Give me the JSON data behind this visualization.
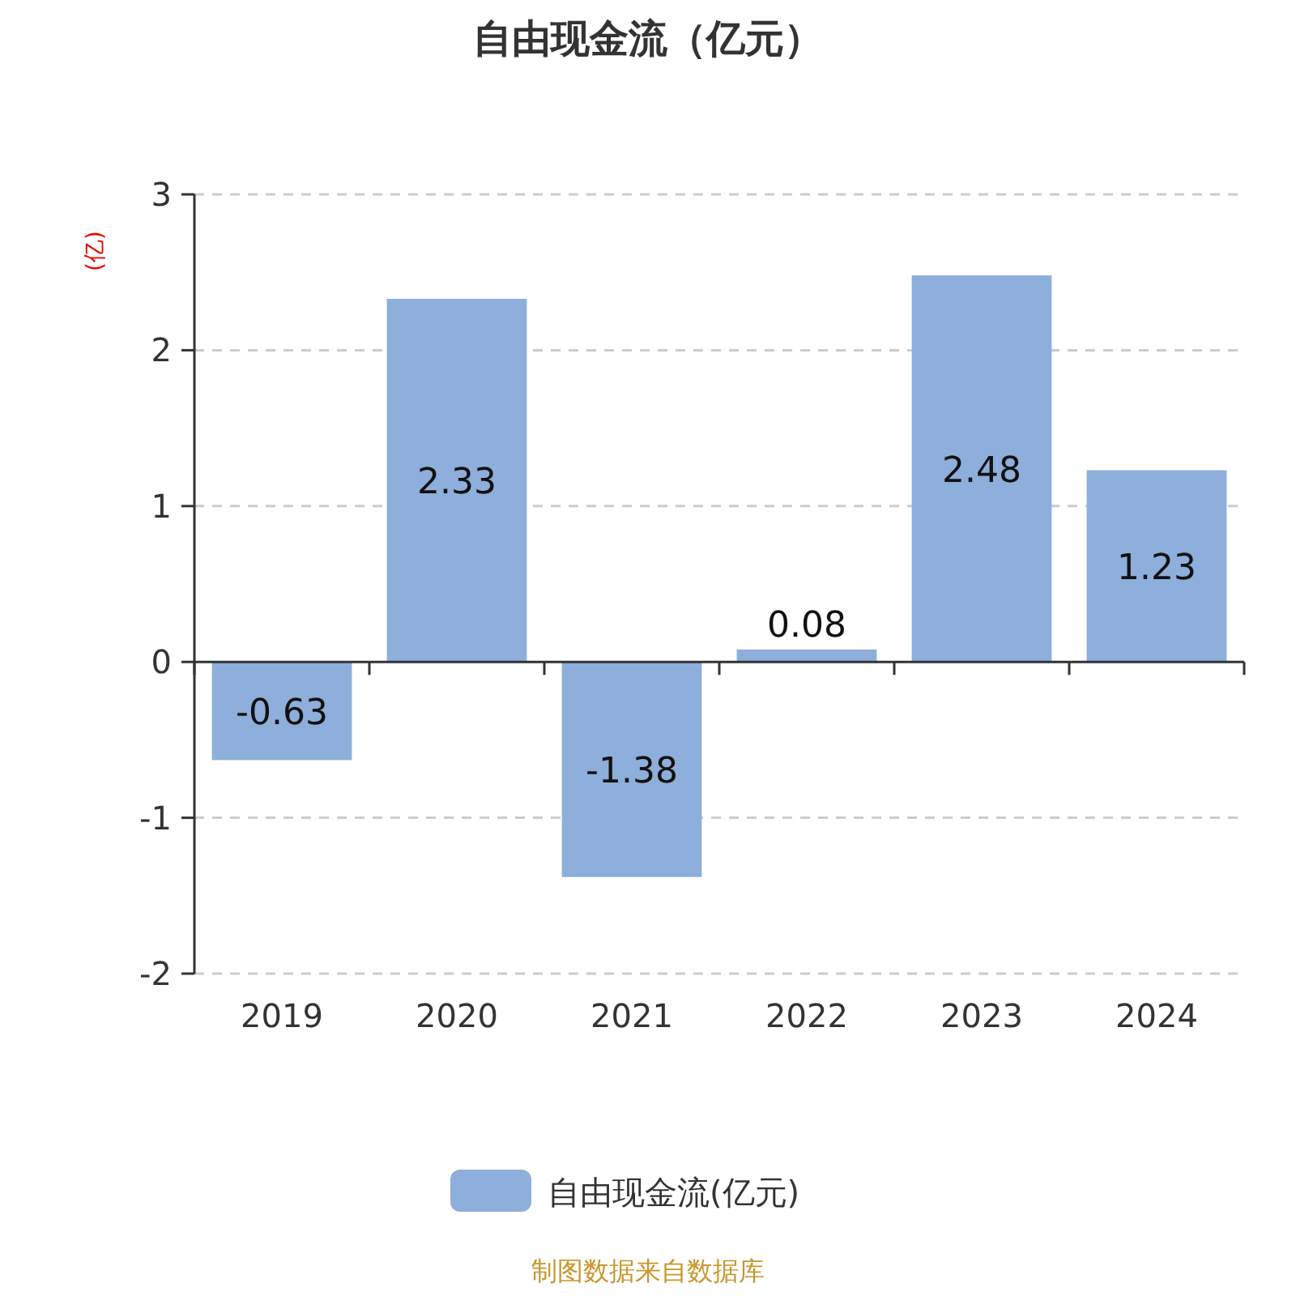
{
  "chart_data": {
    "type": "bar",
    "title": "自由现金流（亿元）",
    "ylabel": "(亿)",
    "categories": [
      "2019",
      "2020",
      "2021",
      "2022",
      "2023",
      "2024"
    ],
    "series": [
      {
        "name": "自由现金流(亿元)",
        "color": "#8eaedb",
        "values": [
          -0.63,
          2.33,
          -1.38,
          0.08,
          2.48,
          1.23
        ]
      }
    ],
    "ylim": [
      -2,
      3
    ],
    "yticks": [
      -2,
      -1,
      0,
      1,
      2,
      3
    ],
    "grid": "y",
    "legend": "bottom",
    "data_labels": true,
    "annotations": [
      "制图数据来自数据库"
    ]
  }
}
